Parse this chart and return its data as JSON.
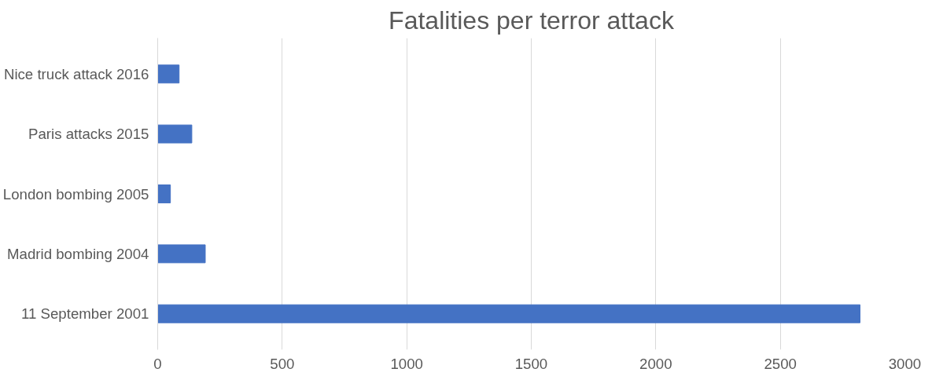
{
  "chart_data": {
    "type": "bar",
    "orientation": "horizontal",
    "title": "Fatalities per terror attack",
    "categories": [
      "Nice truck attack 2016",
      "Paris attacks 2015",
      "London bombing 2005",
      "Madrid bombing 2004",
      "11 September 2001"
    ],
    "values": [
      86,
      137,
      51,
      191,
      2820
    ],
    "color": "#4472c4",
    "xlim": [
      0,
      3000
    ],
    "xticks": [
      0,
      500,
      1000,
      1500,
      2000,
      2500,
      3000
    ],
    "grid": "x"
  }
}
